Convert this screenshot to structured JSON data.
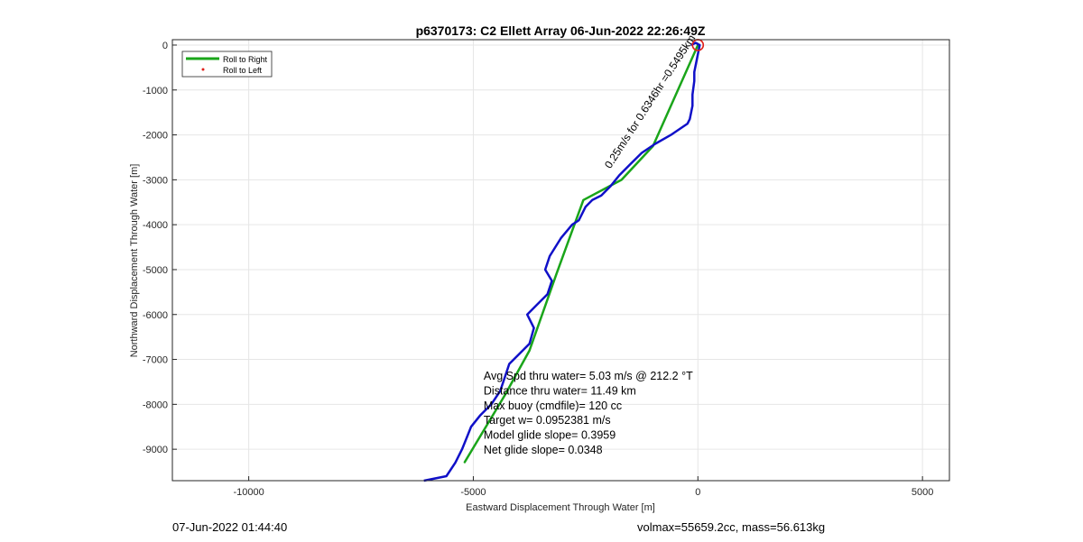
{
  "chart_data": {
    "type": "line",
    "title": "p6370173: C2 Ellett Array 06-Jun-2022 22:26:49Z",
    "xlabel": "Eastward Displacement Through Water [m]",
    "ylabel": "Northward Displacement Through Water [m]",
    "xlim": [
      -11700,
      5600
    ],
    "ylim": [
      -9700,
      120
    ],
    "xticks": [
      -10000,
      -5000,
      0,
      5000
    ],
    "yticks": [
      0,
      -1000,
      -2000,
      -3000,
      -4000,
      -5000,
      -6000,
      -7000,
      -8000,
      -9000
    ],
    "xtick_labels": [
      "-10000",
      "-5000",
      "0",
      "5000"
    ],
    "ytick_labels": [
      "0",
      "-1000",
      "-2000",
      "-3000",
      "-4000",
      "-5000",
      "-6000",
      "-7000",
      "-8000",
      "-9000"
    ],
    "grid": true,
    "legend_position": "top-left",
    "legend": [
      {
        "label": "Roll to Right",
        "color": "#1aa51a",
        "style": "line"
      },
      {
        "label": "Roll to Left",
        "color": "#e0201a",
        "style": "dot"
      }
    ],
    "series": [
      {
        "color": "#1aa51a",
        "x": [
          0,
          -1000,
          -1700,
          -2550,
          -3150,
          -3750,
          -4300,
          -5200
        ],
        "y": [
          0,
          -2250,
          -3000,
          -3450,
          -5100,
          -6800,
          -7800,
          -9300
        ]
      },
      {
        "color": "#1010c8",
        "x": [
          -150,
          -50,
          40,
          -80,
          -80,
          -120,
          -120,
          -180,
          -230,
          -380,
          -600,
          -950,
          -1250,
          -1500,
          -1750,
          -1950,
          -2150,
          -2350,
          -2500,
          -2650,
          -2800,
          -3050,
          -3300,
          -3400,
          -3250,
          -3350,
          -3600,
          -3800,
          -3650,
          -3750,
          -4000,
          -4200,
          -4300,
          -4400,
          -4600,
          -4850,
          -5050,
          -5150,
          -5250,
          -5400,
          -5600,
          -6100
        ],
        "y": [
          0,
          50,
          0,
          -600,
          -800,
          -1100,
          -1350,
          -1650,
          -1750,
          -1850,
          -2000,
          -2200,
          -2400,
          -2650,
          -2900,
          -3150,
          -3350,
          -3450,
          -3600,
          -3900,
          -4000,
          -4300,
          -4700,
          -5000,
          -5250,
          -5550,
          -5800,
          -6000,
          -6300,
          -6650,
          -6900,
          -7100,
          -7400,
          -7700,
          -8000,
          -8250,
          -8500,
          -8750,
          -9000,
          -9300,
          -9600,
          -9700
        ]
      }
    ],
    "start_marker": {
      "x": 0,
      "y": 0,
      "color": "#e0201a"
    },
    "annotations": {
      "rotated": "0.25m/s for 0.6346hr =0.5495km",
      "stats": [
        "Avg Spd thru water=  5.03 m/s @ 212.2 °T",
        "Distance thru water= 11.49 km",
        "Max buoy (cmdfile)= 120 cc",
        "Target w= 0.0952381 m/s",
        "Model glide slope= 0.3959",
        "Net glide slope= 0.0348"
      ]
    }
  },
  "footer": {
    "left": "07-Jun-2022 01:44:40",
    "right": "volmax=55659.2cc, mass=56.613kg"
  }
}
